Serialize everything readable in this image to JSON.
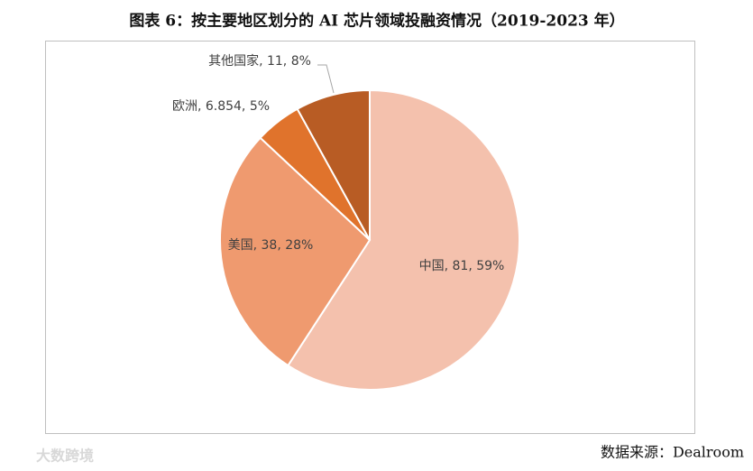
{
  "chart_data": {
    "type": "pie",
    "title": "图表 6：按主要地区划分的 AI 芯片领域投融资情况（2019-2023 年）",
    "categories": [
      "中国",
      "美国",
      "欧洲",
      "其他国家"
    ],
    "values": [
      81,
      38,
      6.854,
      11
    ],
    "value_labels": [
      "中国, 81, 59%",
      "美国, 38, 28%",
      "欧洲, 6.854, 5%",
      "其他国家, 11, 8%"
    ],
    "colors": [
      "#f4c1ad",
      "#ef9a6f",
      "#e0732c",
      "#b85c24"
    ],
    "source": "数据来源：Dealroom",
    "watermark": "大数跨境"
  }
}
